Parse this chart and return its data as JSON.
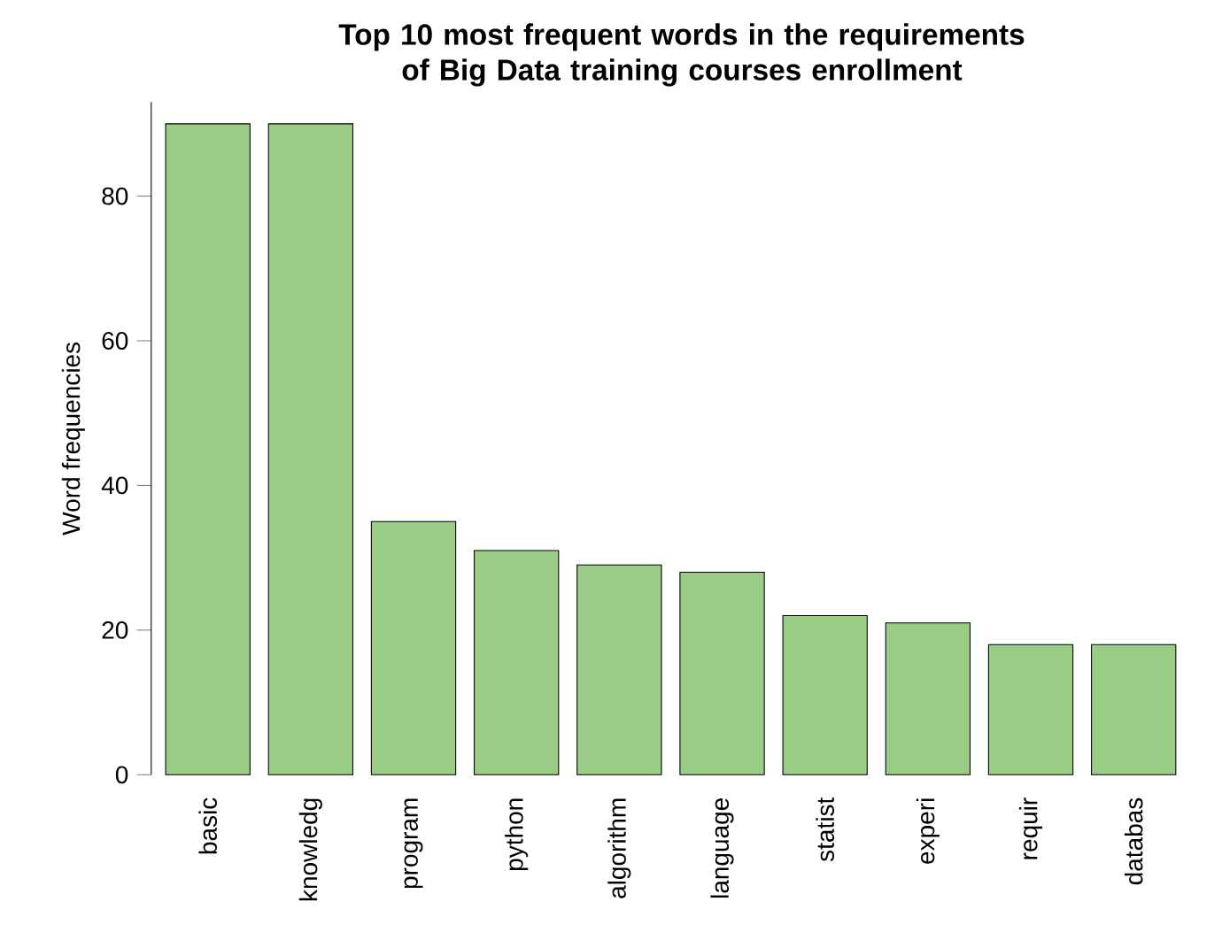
{
  "chart_data": {
    "type": "bar",
    "title": "Top 10 most frequent words in the requirements\nof Big Data training courses enrollment",
    "ylabel": "Word frequencies",
    "categories": [
      "basic",
      "knowledg",
      "program",
      "python",
      "algorithm",
      "language",
      "statist",
      "experi",
      "requir",
      "databas"
    ],
    "values": [
      90,
      90,
      35,
      31,
      29,
      28,
      22,
      21,
      18,
      18
    ],
    "color": "#99cd85",
    "ylim": [
      0,
      93
    ],
    "yticks": [
      0,
      20,
      40,
      60,
      80
    ],
    "grid": false
  }
}
